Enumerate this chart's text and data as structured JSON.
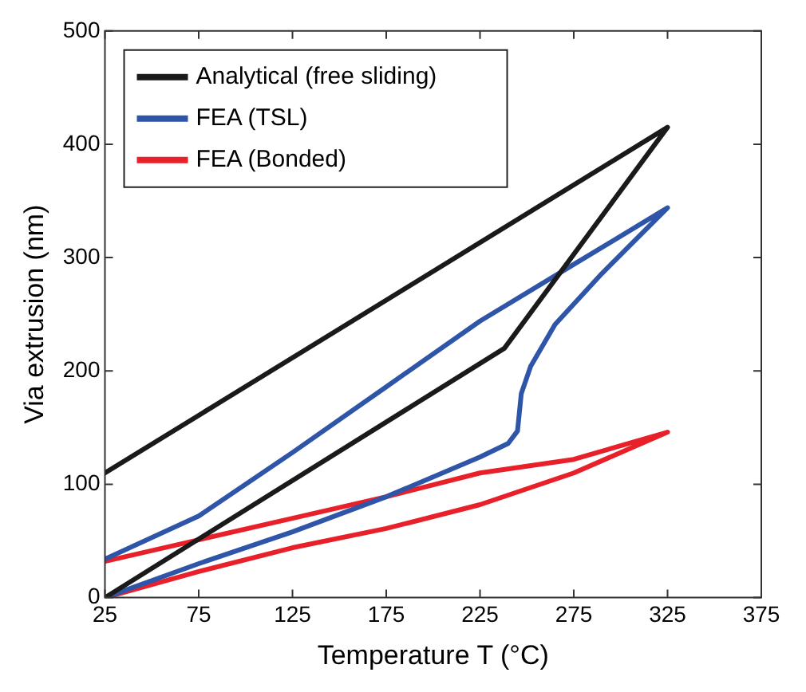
{
  "chart_data": {
    "type": "line",
    "xlabel": "Temperature T (°C)",
    "ylabel": "Via extrusion (nm)",
    "xlim": [
      25,
      375
    ],
    "xticks": [
      25,
      75,
      125,
      175,
      225,
      275,
      325,
      375
    ],
    "ylim": [
      0,
      500
    ],
    "yticks": [
      0,
      100,
      200,
      300,
      400,
      500
    ],
    "legend": "top left",
    "grid": false,
    "marker": "none",
    "line_style": "solid",
    "series": [
      {
        "name": "Analytical (free sliding)",
        "color": "#1a1a1a",
        "x": [
          25,
          238,
          325,
          25
        ],
        "values": [
          0,
          220,
          415,
          110
        ]
      },
      {
        "name": "FEA (TSL)",
        "color": "#2f55a8",
        "x": [
          25,
          75,
          125,
          175,
          225,
          240,
          245,
          247,
          252,
          265,
          290,
          325,
          275,
          225,
          175,
          125,
          75,
          25
        ],
        "values": [
          0,
          30,
          58,
          89,
          124,
          136,
          147,
          180,
          204,
          241,
          286,
          344,
          294,
          244,
          186,
          128,
          72,
          34
        ]
      },
      {
        "name": "FEA (Bonded)",
        "color": "#e8202a",
        "x": [
          25,
          75,
          125,
          175,
          225,
          275,
          325,
          275,
          225,
          175,
          125,
          75,
          25
        ],
        "values": [
          0,
          23,
          44,
          61,
          82,
          110,
          146,
          122,
          110,
          89,
          70,
          51,
          32
        ]
      }
    ]
  }
}
